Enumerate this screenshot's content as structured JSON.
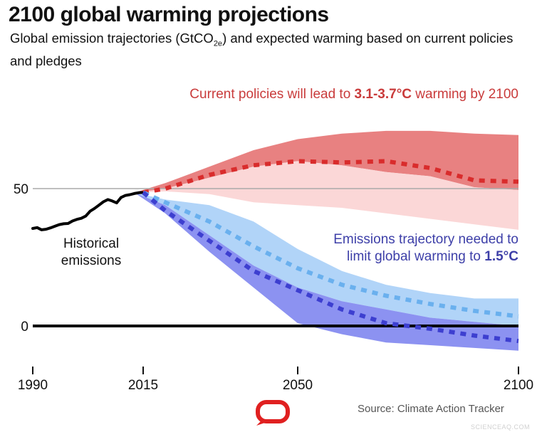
{
  "header": {
    "title": "2100 global warming projections",
    "subtitle_pre": "Global emission trajectories (GtCO",
    "subtitle_sub": "2e",
    "subtitle_post": ") and expected warming based on current policies and pledges"
  },
  "annotations": {
    "current_pre": "Current policies will lead to ",
    "current_bold": "3.1-3.7°C",
    "current_post": "  warming by 2100",
    "needed_line1": "Emissions trajectory needed to",
    "needed_line2_pre": "limit global warming to ",
    "needed_line2_bold": "1.5°C",
    "historical_line1": "Historical",
    "historical_line2": "emissions"
  },
  "footer": {
    "source": "Source: Climate Action Tracker",
    "watermark": "SCIENCEAQ.COM"
  },
  "colors": {
    "historical": "#000000",
    "current_dark_band": "#e57373",
    "current_light_band": "#fbd3d3",
    "current_line": "#d92c2c",
    "pathway_light_band": "#a9cff7",
    "pathway_light_line": "#6ab0ee",
    "pathway_dark_band": "#7f86ef",
    "pathway_dark_line": "#3d3fd0",
    "zero_line": "#000000",
    "ref_line": "#aaaaaa",
    "logo": "#e02020"
  },
  "chart_data": {
    "type": "line",
    "title": "2100 global warming projections",
    "x_ticks": [
      1990,
      2015,
      2050,
      2100
    ],
    "x_tick_labels": [
      "1990",
      "2015",
      "2050",
      "2100"
    ],
    "y_ticks": [
      0,
      50
    ],
    "y_tick_labels": [
      "0",
      "50"
    ],
    "xlim": [
      1990,
      2100
    ],
    "ylim": [
      -14,
      71
    ],
    "reference_line_y": 50,
    "bands": [
      {
        "name": "Current policies (high range)",
        "x": [
          2013,
          2020,
          2030,
          2040,
          2050,
          2060,
          2070,
          2080,
          2090,
          2100
        ],
        "lower": [
          48.5,
          50,
          54,
          58,
          60,
          58.5,
          56,
          54.5,
          50.5,
          49.5
        ],
        "upper": [
          48.5,
          52,
          58,
          64,
          68,
          70,
          71,
          71,
          70,
          69.5
        ],
        "color_key": "current_dark_band"
      },
      {
        "name": "Current policies (low range)",
        "x": [
          2013,
          2020,
          2030,
          2040,
          2050,
          2060,
          2070,
          2080,
          2090,
          2100
        ],
        "lower": [
          48.5,
          49,
          48,
          45,
          44,
          43,
          41,
          39,
          37,
          35
        ],
        "upper": [
          48.5,
          50,
          54,
          58,
          60,
          58.5,
          56,
          54.5,
          50.5,
          49.5
        ],
        "color_key": "current_light_band"
      },
      {
        "name": "1.5°C pathway (upper range)",
        "x": [
          2013,
          2020,
          2030,
          2040,
          2050,
          2060,
          2070,
          2080,
          2090,
          2100
        ],
        "lower": [
          48.5,
          44,
          33,
          22,
          14,
          9,
          6,
          3,
          1.5,
          0
        ],
        "upper": [
          48.5,
          46,
          44,
          38,
          28,
          20,
          15,
          12,
          10,
          10
        ],
        "color_key": "pathway_light_band"
      },
      {
        "name": "1.5°C pathway (lower range)",
        "x": [
          2013,
          2020,
          2030,
          2040,
          2050,
          2060,
          2070,
          2080,
          2090,
          2100
        ],
        "lower": [
          48.5,
          41,
          27,
          14,
          1,
          -3,
          -6,
          -7,
          -8,
          -9
        ],
        "upper": [
          48.5,
          44,
          33,
          22,
          14,
          9,
          6,
          3,
          1.5,
          0
        ],
        "color_key": "pathway_dark_band"
      }
    ],
    "series": [
      {
        "name": "Historical emissions",
        "style": "solid",
        "color_key": "historical",
        "x": [
          1990,
          1991,
          1992,
          1993,
          1994,
          1995,
          1996,
          1997,
          1998,
          1999,
          2000,
          2001,
          2002,
          2003,
          2004,
          2005,
          2006,
          2007,
          2008,
          2009,
          2010,
          2011,
          2012,
          2013,
          2014,
          2015
        ],
        "y": [
          35.5,
          35.8,
          35.0,
          35.2,
          35.7,
          36.3,
          36.9,
          37.2,
          37.3,
          38.2,
          38.8,
          39.2,
          40.0,
          41.8,
          42.8,
          44.0,
          45.2,
          46.0,
          45.5,
          44.8,
          46.8,
          47.5,
          47.8,
          48.2,
          48.5,
          48.6
        ]
      },
      {
        "name": "Current policies",
        "style": "dotted",
        "color_key": "current_line",
        "x": [
          2015,
          2020,
          2030,
          2040,
          2050,
          2060,
          2070,
          2080,
          2090,
          2100
        ],
        "y": [
          48.6,
          50,
          55,
          58.5,
          60,
          59.5,
          60,
          57.5,
          53,
          52.5
        ]
      },
      {
        "name": "1.5°C pathway (median)",
        "style": "dotted",
        "color_key": "pathway_light_line",
        "x": [
          2015,
          2020,
          2030,
          2040,
          2050,
          2060,
          2070,
          2080,
          2090,
          2100
        ],
        "y": [
          48.6,
          45,
          38,
          29,
          21,
          15,
          11,
          8,
          5.5,
          3.5
        ]
      },
      {
        "name": "1.5°C pathway (low)",
        "style": "dotted",
        "color_key": "pathway_dark_line",
        "x": [
          2015,
          2020,
          2030,
          2040,
          2050,
          2060,
          2070,
          2080,
          2090,
          2100
        ],
        "y": [
          48.6,
          42,
          31,
          20,
          13,
          6,
          1,
          -1,
          -3.5,
          -5.5
        ]
      }
    ]
  }
}
